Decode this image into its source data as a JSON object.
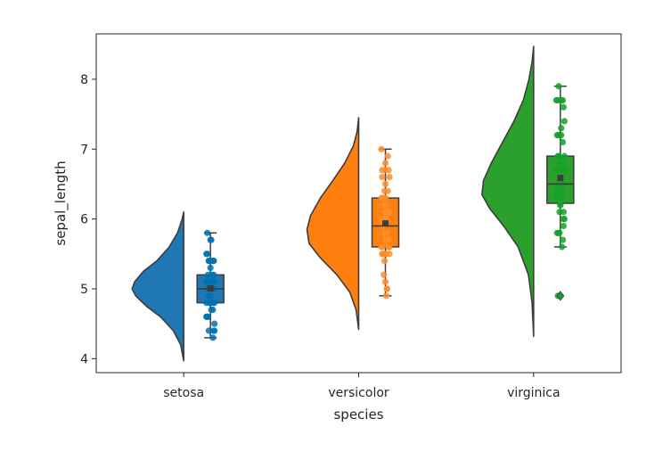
{
  "chart_data": {
    "type": "raincloud",
    "xlabel": "species",
    "ylabel": "sepal_length",
    "ylim": [
      3.8,
      8.65
    ],
    "yticks": [
      4,
      5,
      6,
      7,
      8
    ],
    "categories": [
      "setosa",
      "versicolor",
      "virginica"
    ],
    "colors": {
      "setosa": [
        "#1f77b4",
        "#0072b2"
      ],
      "versicolor": [
        "#ff7f0e",
        "#ff8c2a"
      ],
      "virginica": [
        "#2ca02c",
        "#14a12a"
      ]
    },
    "series": [
      {
        "category": "setosa",
        "density": {
          "y": [
            3.97,
            4.2,
            4.4,
            4.6,
            4.75,
            4.9,
            5.0,
            5.1,
            5.25,
            5.4,
            5.6,
            5.8,
            6.0,
            6.1
          ],
          "width": [
            0.0,
            0.06,
            0.2,
            0.45,
            0.72,
            0.93,
            1.0,
            0.95,
            0.78,
            0.52,
            0.28,
            0.12,
            0.03,
            0.0
          ]
        },
        "box": {
          "q1": 4.8,
          "median": 5.0,
          "q3": 5.2,
          "whisker_low": 4.3,
          "whisker_high": 5.8,
          "mean": 5.006
        },
        "points": [
          5.1,
          4.9,
          4.7,
          4.6,
          5.0,
          5.4,
          4.6,
          5.0,
          4.4,
          4.9,
          5.4,
          4.8,
          4.8,
          4.3,
          5.8,
          5.7,
          5.4,
          5.1,
          5.7,
          5.1,
          5.4,
          5.1,
          4.6,
          5.1,
          4.8,
          5.0,
          5.0,
          5.2,
          5.2,
          4.7,
          4.8,
          5.4,
          5.2,
          5.5,
          4.9,
          5.0,
          5.5,
          4.9,
          4.4,
          5.1,
          5.0,
          4.5,
          4.4,
          5.0,
          5.1,
          4.8,
          5.1,
          4.6,
          5.3,
          5.0
        ]
      },
      {
        "category": "versicolor",
        "density": {
          "y": [
            4.42,
            4.7,
            4.95,
            5.2,
            5.45,
            5.65,
            5.85,
            6.05,
            6.3,
            6.55,
            6.8,
            7.05,
            7.25,
            7.45
          ],
          "width": [
            0.0,
            0.05,
            0.17,
            0.42,
            0.75,
            0.96,
            1.0,
            0.93,
            0.74,
            0.5,
            0.27,
            0.1,
            0.03,
            0.0
          ]
        },
        "box": {
          "q1": 5.6,
          "median": 5.9,
          "q3": 6.3,
          "whisker_low": 4.9,
          "whisker_high": 7.0,
          "mean": 5.936
        },
        "points": [
          7.0,
          6.4,
          6.9,
          5.5,
          6.5,
          5.7,
          6.3,
          4.9,
          6.6,
          5.2,
          5.0,
          5.9,
          6.0,
          6.1,
          5.6,
          6.7,
          5.6,
          5.8,
          6.2,
          5.6,
          5.9,
          6.1,
          6.3,
          6.1,
          6.4,
          6.6,
          6.8,
          6.7,
          6.0,
          5.7,
          5.5,
          5.5,
          5.8,
          6.0,
          5.4,
          6.0,
          6.7,
          6.3,
          5.6,
          5.5,
          5.5,
          6.1,
          5.8,
          5.0,
          5.6,
          5.7,
          5.7,
          6.2,
          5.1,
          5.7
        ]
      },
      {
        "category": "virginica",
        "density": {
          "y": [
            4.32,
            4.8,
            5.2,
            5.6,
            5.9,
            6.15,
            6.35,
            6.55,
            6.8,
            7.1,
            7.4,
            7.7,
            8.0,
            8.25,
            8.47
          ],
          "width": [
            0.0,
            0.03,
            0.1,
            0.3,
            0.58,
            0.85,
            1.0,
            0.97,
            0.82,
            0.6,
            0.38,
            0.2,
            0.09,
            0.03,
            0.0
          ]
        },
        "box": {
          "q1": 6.225,
          "median": 6.5,
          "q3": 6.9,
          "whisker_low": 5.6,
          "whisker_high": 7.9,
          "mean": 6.588
        },
        "outliers": [
          4.9
        ],
        "points": [
          6.3,
          5.8,
          7.1,
          6.3,
          6.5,
          7.6,
          4.9,
          7.3,
          6.7,
          7.2,
          6.5,
          6.4,
          6.8,
          5.7,
          5.8,
          6.4,
          6.5,
          7.7,
          7.7,
          6.0,
          6.9,
          5.6,
          7.7,
          6.3,
          6.7,
          7.2,
          6.2,
          6.1,
          6.4,
          7.2,
          7.4,
          7.9,
          6.4,
          6.3,
          6.1,
          7.7,
          6.3,
          6.4,
          6.0,
          6.9,
          6.7,
          6.9,
          5.8,
          6.8,
          6.7,
          6.7,
          6.3,
          6.5,
          6.2,
          5.9
        ]
      }
    ]
  }
}
